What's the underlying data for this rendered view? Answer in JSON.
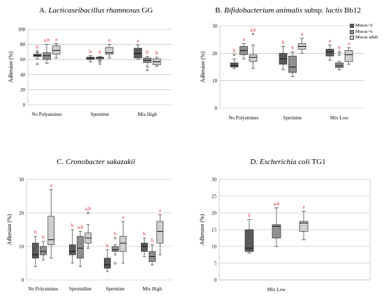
{
  "colors": {
    "low": "#5a5a5a",
    "high": "#8f8f8f",
    "adult": "#cfcfcf",
    "letters": "#d62020",
    "axis": "#b0b0b0"
  },
  "chart_data": [
    {
      "type": "box",
      "letter": "A.",
      "organism_italic": "Lacticaseibacillus rhamnosus",
      "organism_plain": " GG",
      "ylabel": "Adhesion (%)",
      "ylim": [
        0,
        100
      ],
      "yticks": [
        0,
        20,
        40,
        60,
        80,
        100
      ],
      "groups": [
        "No Polyamines",
        "Spermine",
        "Mix High"
      ],
      "series": [
        "Mucus<6",
        "Mucus>6",
        "Mucus adult"
      ],
      "boxes": [
        {
          "g": 0,
          "s": 0,
          "min": 61,
          "q1": 64,
          "med": 65,
          "q3": 67,
          "max": 69,
          "outliers": [
            71,
            54
          ],
          "label": "b"
        },
        {
          "g": 0,
          "s": 1,
          "min": 55,
          "q1": 60,
          "med": 65,
          "q3": 69,
          "max": 80,
          "outliers": [],
          "label": "a,b"
        },
        {
          "g": 0,
          "s": 2,
          "min": 62,
          "q1": 67,
          "med": 72,
          "q3": 78,
          "max": 81,
          "outliers": [],
          "label": "a"
        },
        {
          "g": 1,
          "s": 0,
          "min": 57,
          "q1": 60,
          "med": 62,
          "q3": 63,
          "max": 65,
          "outliers": [],
          "label": "b"
        },
        {
          "g": 1,
          "s": 1,
          "min": 59,
          "q1": 61,
          "med": 62,
          "q3": 63,
          "max": 64,
          "outliers": [
            57,
            54
          ],
          "label": "b"
        },
        {
          "g": 1,
          "s": 2,
          "min": 62,
          "q1": 67,
          "med": 69,
          "q3": 76,
          "max": 80,
          "outliers": [],
          "label": "a"
        },
        {
          "g": 2,
          "s": 0,
          "min": 60,
          "q1": 62,
          "med": 68,
          "q3": 75,
          "max": 79,
          "outliers": [],
          "label": "a"
        },
        {
          "g": 2,
          "s": 1,
          "min": 50,
          "q1": 56,
          "med": 59,
          "q3": 62,
          "max": 64,
          "outliers": [
            46
          ],
          "label": "b"
        },
        {
          "g": 2,
          "s": 2,
          "min": 51,
          "q1": 53,
          "med": 57,
          "q3": 61,
          "max": 63,
          "outliers": [],
          "label": "b"
        }
      ]
    },
    {
      "type": "box",
      "letter": "B.",
      "organism_italic": "Bifidobacterium animalis",
      "organism_plain": " subsp. ",
      "organism_italic2": "lactis",
      "organism_plain2": " Bb12",
      "ylabel": "Adhesion (%)",
      "ylim": [
        0,
        30
      ],
      "yticks": [
        0,
        10,
        20,
        30
      ],
      "groups": [
        "No Polyamines",
        "Spermine",
        "Mix Low"
      ],
      "series": [
        "Mucus<6",
        "Mucus>6",
        "Mucus adult"
      ],
      "legend": [
        "Mucus<6",
        "Mucus>6",
        "Mucus adult"
      ],
      "boxes": [
        {
          "g": 0,
          "s": 0,
          "min": 14.5,
          "q1": 15,
          "med": 15.5,
          "q3": 16.5,
          "max": 18,
          "outliers": [
            19.5
          ],
          "label": "b"
        },
        {
          "g": 0,
          "s": 1,
          "min": 18,
          "q1": 19.5,
          "med": 21,
          "q3": 22.5,
          "max": 23.5,
          "outliers": [],
          "label": "a"
        },
        {
          "g": 0,
          "s": 2,
          "min": 14.5,
          "q1": 17,
          "med": 18.5,
          "q3": 19.5,
          "max": 23,
          "outliers": [
            27
          ],
          "label": "a,b"
        },
        {
          "g": 1,
          "s": 0,
          "min": 14,
          "q1": 16,
          "med": 18,
          "q3": 20,
          "max": 22.5,
          "outliers": [],
          "label": "b"
        },
        {
          "g": 1,
          "s": 1,
          "min": 11.5,
          "q1": 13,
          "med": 15,
          "q3": 19,
          "max": 20.5,
          "outliers": [],
          "label": "b"
        },
        {
          "g": 1,
          "s": 2,
          "min": 20,
          "q1": 21.5,
          "med": 22.5,
          "q3": 23.5,
          "max": 25.5,
          "outliers": [],
          "label": "a"
        },
        {
          "g": 2,
          "s": 0,
          "min": 17.5,
          "q1": 19,
          "med": 20.5,
          "q3": 21.5,
          "max": 23,
          "outliers": [],
          "label": "a"
        },
        {
          "g": 2,
          "s": 1,
          "min": 14,
          "q1": 14.8,
          "med": 15.5,
          "q3": 16.5,
          "max": 17,
          "outliers": [
            20.5,
            19.5
          ],
          "label": "b"
        },
        {
          "g": 2,
          "s": 2,
          "min": 16,
          "q1": 17,
          "med": 19.5,
          "q3": 21,
          "max": 22,
          "outliers": [],
          "label": "a"
        }
      ]
    },
    {
      "type": "box",
      "letter": "C.",
      "organism_italic": "Cronobacter sakazakii",
      "organism_plain": "",
      "ylabel": "Adhesion (%)",
      "ylim": [
        0,
        30
      ],
      "yticks": [
        0,
        10,
        20,
        30
      ],
      "groups": [
        "No Polyamines",
        "Spermidine",
        "Spermine",
        "Mix High"
      ],
      "series": [
        "Mucus<6",
        "Mucus>6",
        "Mucus adult"
      ],
      "boxes": [
        {
          "g": 0,
          "s": 0,
          "min": 4,
          "q1": 6.5,
          "med": 7.5,
          "q3": 11,
          "max": 13,
          "outliers": [],
          "label": "b"
        },
        {
          "g": 0,
          "s": 1,
          "min": 6,
          "q1": 7.5,
          "med": 8.5,
          "q3": 10,
          "max": 11.5,
          "outliers": [],
          "label": "b"
        },
        {
          "g": 0,
          "s": 2,
          "min": 6.5,
          "q1": 10.5,
          "med": 12,
          "q3": 19,
          "max": 27,
          "outliers": [],
          "label": "a"
        },
        {
          "g": 1,
          "s": 0,
          "min": 5,
          "q1": 7.5,
          "med": 8.5,
          "q3": 10.5,
          "max": 15,
          "outliers": [],
          "label": "b"
        },
        {
          "g": 1,
          "s": 1,
          "min": 4,
          "q1": 6.5,
          "med": 9.5,
          "q3": 13,
          "max": 14.5,
          "outliers": [],
          "label": "a,b"
        },
        {
          "g": 1,
          "s": 2,
          "min": 9.5,
          "q1": 11,
          "med": 12.5,
          "q3": 14,
          "max": 16.5,
          "outliers": [
            20
          ],
          "label": "a,b"
        },
        {
          "g": 2,
          "s": 0,
          "min": 2.5,
          "q1": 3.5,
          "med": 4.5,
          "q3": 6.5,
          "max": 9,
          "outliers": [],
          "label": "b"
        },
        {
          "g": 2,
          "s": 1,
          "min": 7.5,
          "q1": 8.5,
          "med": 9,
          "q3": 10,
          "max": 10.5,
          "outliers": [
            12.5,
            5
          ],
          "label": "b"
        },
        {
          "g": 2,
          "s": 2,
          "min": 5,
          "q1": 8.5,
          "med": 11,
          "q3": 13,
          "max": 17.5,
          "outliers": [],
          "label": "a"
        },
        {
          "g": 3,
          "s": 0,
          "min": 7,
          "q1": 8.5,
          "med": 10,
          "q3": 11,
          "max": 12.5,
          "outliers": [],
          "label": "b"
        },
        {
          "g": 3,
          "s": 1,
          "min": 4.5,
          "q1": 5.5,
          "med": 7,
          "q3": 8.5,
          "max": 10.5,
          "outliers": [],
          "label": "b"
        },
        {
          "g": 3,
          "s": 2,
          "min": 7.5,
          "q1": 11,
          "med": 14.5,
          "q3": 17.5,
          "max": 19.5,
          "outliers": [],
          "label": "a"
        }
      ]
    },
    {
      "type": "box",
      "letter": "D.",
      "organism_italic": "Escherichia coli",
      "organism_plain": " TG1",
      "ylabel": "Adhesion (%)",
      "ylim": [
        0,
        30
      ],
      "yticks": [
        0,
        5,
        10,
        15,
        20,
        25,
        30
      ],
      "groups": [
        "Mix Low"
      ],
      "xlabel": "Mix Low",
      "series": [
        "Mucus<6",
        "Mucus>6",
        "Mucus adult"
      ],
      "boxes": [
        {
          "g": 0,
          "s": 0,
          "min": 8,
          "q1": 8.5,
          "med": 9.5,
          "q3": 15,
          "max": 18,
          "outliers": [],
          "label": "b"
        },
        {
          "g": 0,
          "s": 1,
          "min": 10,
          "q1": 12.5,
          "med": 16,
          "q3": 16.5,
          "max": 21.5,
          "outliers": [],
          "label": "a,b"
        },
        {
          "g": 0,
          "s": 2,
          "min": 12,
          "q1": 14.5,
          "med": 17,
          "q3": 17.5,
          "max": 20.5,
          "outliers": [],
          "label": "a"
        }
      ]
    }
  ]
}
